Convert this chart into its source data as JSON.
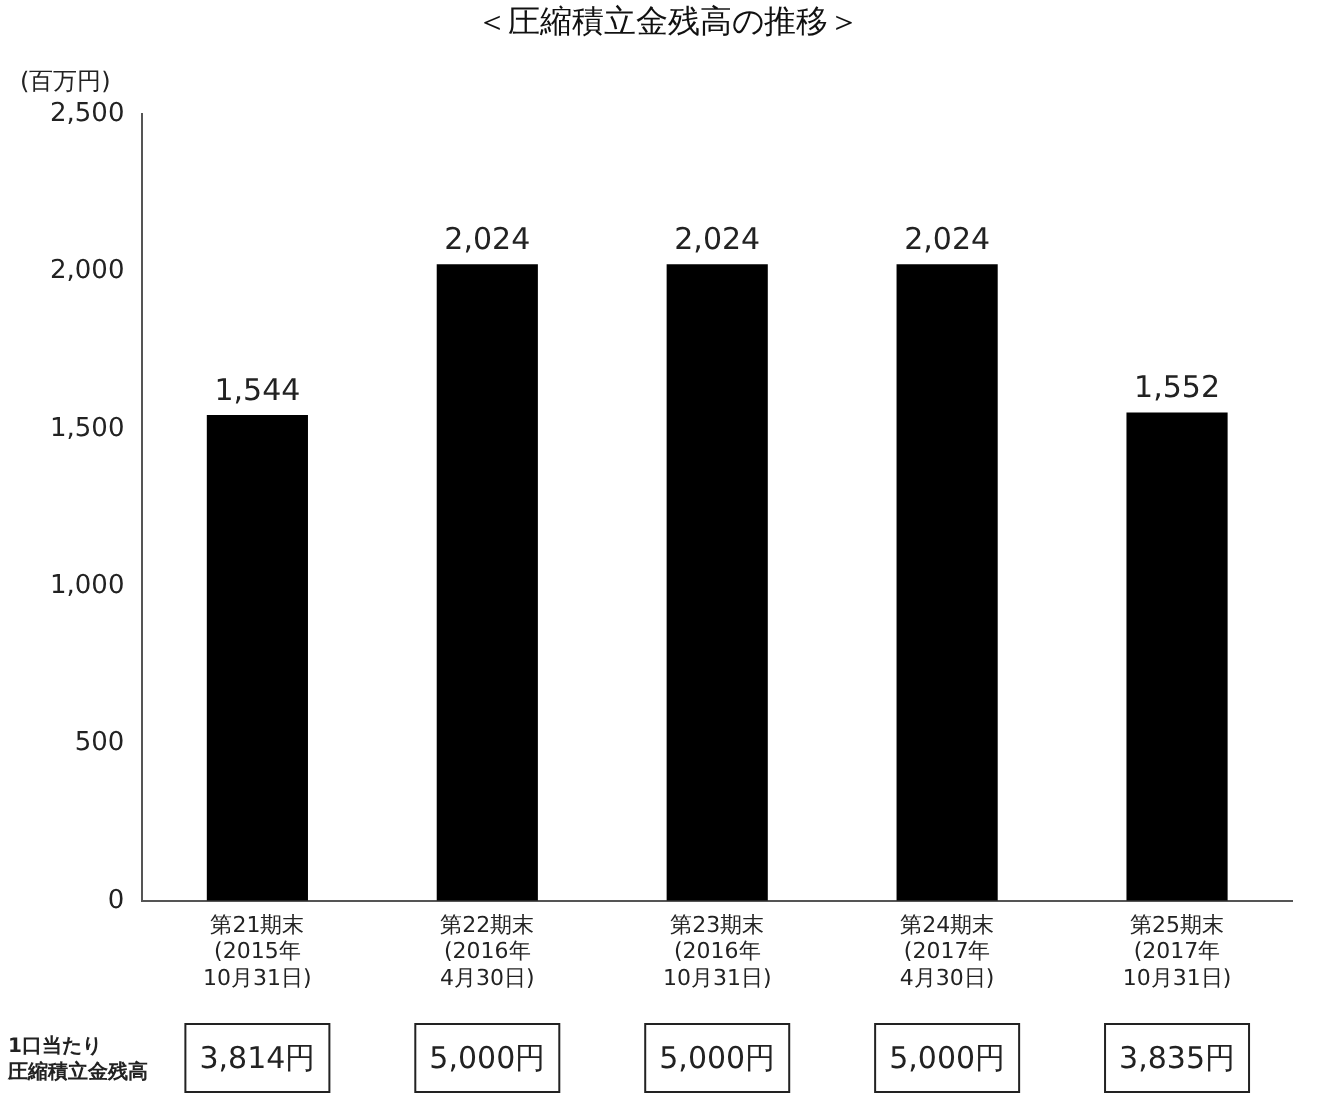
{
  "chart_data": {
    "type": "bar",
    "title": "＜圧縮積立金残高の推移＞",
    "ylabel": "(百万円)",
    "categories": [
      "第21期末\n(2015年\n10月31日)",
      "第22期末\n(2016年\n4月30日)",
      "第23期末\n(2016年\n10月31日)",
      "第24期末\n(2017年\n4月30日)",
      "第25期末\n(2017年\n10月31日)"
    ],
    "values": [
      1544,
      2024,
      2024,
      2024,
      1552
    ],
    "color": "#000000",
    "ylim": [
      0,
      2500
    ],
    "yticks": [
      0,
      {
        "value": 500,
        "label": "500"
      },
      {
        "value": 1000,
        "label": "1,000"
      },
      {
        "value": 1500,
        "label": "1,500"
      },
      {
        "value": 2000,
        "label": "2,000"
      },
      {
        "value": 2500,
        "label": "2,500"
      }
    ],
    "grid": false,
    "legend": false,
    "value_labels": [
      "1,544",
      "2,024",
      "2,024",
      "2,024",
      "1,552"
    ],
    "annotations": [
      "1口当たり",
      "圧縮積立金残高",
      "3,814円",
      "5,000円",
      "5,000円",
      "5,000円",
      "3,835円"
    ]
  }
}
